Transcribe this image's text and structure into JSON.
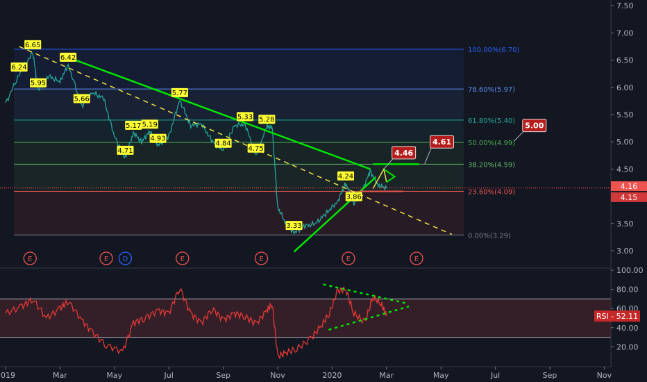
{
  "chart_data": {
    "type": "line",
    "title": "",
    "xlabel": "",
    "ylabel": "",
    "ylim": [
      2.8,
      7.6
    ],
    "price_ticks": [
      "3.00",
      "3.50",
      "4.00",
      "4.50",
      "5.00",
      "5.50",
      "6.00",
      "6.50",
      "7.00",
      "7.50"
    ],
    "x_ticks": [
      "2019",
      "Mar",
      "May",
      "Jul",
      "Sep",
      "Nov",
      "2020",
      "Mar",
      "May",
      "Jul",
      "Sep",
      "Nov"
    ],
    "x_tick_months": [
      0,
      2,
      4,
      6,
      8,
      10,
      12,
      14,
      16,
      18,
      20,
      22
    ],
    "current_price_labels": [
      {
        "label": "4.16",
        "value": 4.16,
        "color": "#ef5350"
      },
      {
        "label": "4.15",
        "value": 4.15,
        "color": "#d1383a"
      }
    ],
    "fib_levels": [
      {
        "label": "100.00%(6.70)",
        "value": 6.7,
        "color": "#2962ff"
      },
      {
        "label": "78.60%(5.97)",
        "value": 5.97,
        "color": "#5b8def"
      },
      {
        "label": "61.80%(5.40)",
        "value": 5.4,
        "color": "#26a69a"
      },
      {
        "label": "50.00%(4.99)",
        "value": 4.99,
        "color": "#4caf50"
      },
      {
        "label": "38.20%(4.59)",
        "value": 4.59,
        "color": "#66bb6a"
      },
      {
        "label": "23.60%(4.09)",
        "value": 4.09,
        "color": "#ef5350"
      },
      {
        "label": "0.00%(3.29)",
        "value": 3.29,
        "color": "#787b86"
      }
    ],
    "price_series": {
      "x": [
        0,
        0.5,
        1.0,
        1.2,
        1.6,
        2.0,
        2.3,
        2.8,
        3.2,
        3.6,
        4.0,
        4.4,
        4.7,
        5.0,
        5.3,
        5.6,
        6.0,
        6.4,
        6.8,
        7.2,
        7.6,
        8.0,
        8.4,
        8.8,
        9.2,
        9.6,
        9.8,
        10.0,
        10.3,
        10.6,
        11.0,
        11.4,
        11.8,
        12.2,
        12.5,
        12.8,
        13.1,
        13.4,
        13.7,
        14.0
      ],
      "values": [
        5.7,
        6.24,
        6.65,
        5.95,
        6.2,
        6.1,
        6.42,
        5.66,
        5.9,
        5.8,
        5.1,
        4.71,
        5.17,
        5.0,
        5.19,
        4.93,
        5.1,
        5.77,
        5.3,
        5.33,
        5.0,
        4.84,
        5.3,
        5.33,
        4.75,
        5.28,
        5.26,
        3.8,
        3.5,
        3.33,
        3.45,
        3.5,
        3.7,
        3.9,
        4.24,
        3.86,
        4.1,
        4.46,
        4.2,
        4.15
      ],
      "color": "#26a69a"
    },
    "peak_labels": [
      {
        "x": 0.5,
        "value": 6.24,
        "label": "6.24"
      },
      {
        "x": 1.0,
        "value": 6.65,
        "label": "6.65"
      },
      {
        "x": 1.2,
        "value": 5.95,
        "label": "5.95"
      },
      {
        "x": 2.3,
        "value": 6.42,
        "label": "6.42"
      },
      {
        "x": 2.8,
        "value": 5.66,
        "label": "5.66"
      },
      {
        "x": 4.4,
        "value": 4.71,
        "label": "4.71"
      },
      {
        "x": 4.7,
        "value": 5.17,
        "label": "5.17"
      },
      {
        "x": 5.3,
        "value": 5.19,
        "label": "5.19"
      },
      {
        "x": 5.6,
        "value": 4.93,
        "label": "4.93"
      },
      {
        "x": 6.4,
        "value": 5.77,
        "label": "5.77"
      },
      {
        "x": 8.0,
        "value": 4.84,
        "label": "4.84"
      },
      {
        "x": 8.8,
        "value": 5.33,
        "label": "5.33"
      },
      {
        "x": 9.2,
        "value": 4.75,
        "label": "4.75"
      },
      {
        "x": 9.6,
        "value": 5.28,
        "label": "5.28"
      },
      {
        "x": 10.6,
        "value": 3.33,
        "label": "3.33"
      },
      {
        "x": 12.5,
        "value": 4.24,
        "label": "4.24"
      },
      {
        "x": 12.8,
        "value": 3.86,
        "label": "3.86"
      }
    ],
    "target_labels": [
      {
        "label": "4.46",
        "value": 4.46
      },
      {
        "label": "4.61",
        "value": 4.61
      },
      {
        "label": "5.00",
        "value": 5.0
      }
    ],
    "trendlines": [
      {
        "name": "downtrend",
        "color": "#00e600",
        "style": "solid",
        "from": [
          2.3,
          6.55
        ],
        "to": [
          13.4,
          4.5
        ]
      },
      {
        "name": "uptrend",
        "color": "#00e600",
        "style": "solid",
        "from": [
          10.6,
          2.98
        ],
        "to": [
          13.6,
          4.35
        ]
      },
      {
        "name": "support",
        "color": "#00e600",
        "style": "solid",
        "from": [
          13.5,
          4.59
        ],
        "to": [
          15.2,
          4.59
        ]
      },
      {
        "name": "channel",
        "color": "#f0e442",
        "style": "dashed",
        "from": [
          0.5,
          6.75
        ],
        "to": [
          16.4,
          3.3
        ]
      }
    ],
    "earnings_markers": [
      {
        "x": 0.9,
        "label": "E"
      },
      {
        "x": 3.7,
        "label": "E"
      },
      {
        "x": 4.4,
        "label": "D"
      },
      {
        "x": 6.5,
        "label": "E"
      },
      {
        "x": 9.4,
        "label": "E"
      },
      {
        "x": 12.6,
        "label": "E"
      },
      {
        "x": 15.1,
        "label": "E"
      }
    ],
    "rsi": {
      "label": "RSI",
      "current_label": "RSI - 52.11",
      "current": 52.11,
      "ticks": [
        "20.00",
        "40.00",
        "60.00",
        "80.00",
        "100.00"
      ],
      "ylim": [
        0,
        100
      ],
      "upper_band": 70,
      "lower_band": 30,
      "x": [
        0,
        0.6,
        1.0,
        1.5,
        2.0,
        2.3,
        2.8,
        3.2,
        3.7,
        4.3,
        4.7,
        5.1,
        5.6,
        6.0,
        6.4,
        6.8,
        7.2,
        7.6,
        8.0,
        8.4,
        8.8,
        9.2,
        9.6,
        9.8,
        10.0,
        10.3,
        10.7,
        11.2,
        11.6,
        11.9,
        12.2,
        12.5,
        12.8,
        13.2,
        13.5,
        13.8,
        14.0
      ],
      "values": [
        55,
        62,
        70,
        50,
        60,
        68,
        48,
        35,
        22,
        15,
        45,
        50,
        58,
        55,
        82,
        55,
        45,
        60,
        48,
        55,
        52,
        44,
        58,
        65,
        10,
        14,
        18,
        28,
        42,
        55,
        78,
        80,
        55,
        45,
        72,
        65,
        52
      ]
    }
  }
}
